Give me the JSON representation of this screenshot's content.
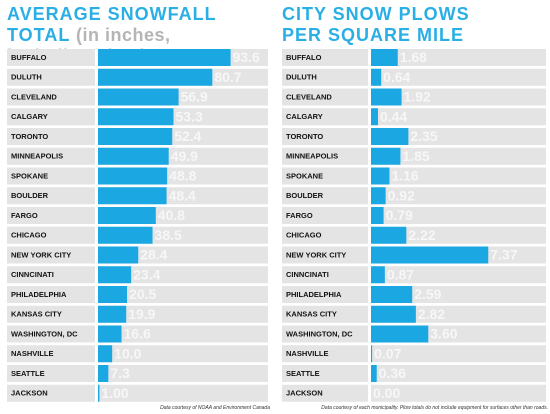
{
  "chart_data": [
    {
      "type": "bar",
      "orientation": "horizontal",
      "title": "AVERAGE SNOWFALL TOTAL",
      "subtitle": "(in inches, including sleet)",
      "categories": [
        "BUFFALO",
        "DULUTH",
        "CLEVELAND",
        "CALGARY",
        "TORONTO",
        "MINNEAPOLIS",
        "SPOKANE",
        "BOULDER",
        "FARGO",
        "CHICAGO",
        "NEW YORK CITY",
        "CINNCINATI",
        "PHILADELPHIA",
        "KANSAS CITY",
        "WASHINGTON, DC",
        "NASHVILLE",
        "SEATTLE",
        "JACKSON"
      ],
      "values": [
        93.6,
        80.7,
        56.9,
        53.3,
        52.4,
        49.9,
        48.8,
        48.4,
        40.8,
        38.5,
        28.4,
        23.4,
        20.5,
        19.9,
        16.6,
        10.0,
        7.3,
        1.0
      ],
      "value_labels": [
        "93.6",
        "80.7",
        "56.9",
        "53.3",
        "52.4",
        "49.9",
        "48.8",
        "48.4",
        "40.8",
        "38.5",
        "28.4",
        "23.4",
        "20.5",
        "19.9",
        "16.6",
        "10.0",
        "7.3",
        "1.00"
      ],
      "color": "#1ba7e2",
      "xlim": [
        0,
        120
      ],
      "note": "Data courtesy of NOAA and Environment Canada"
    },
    {
      "type": "bar",
      "orientation": "horizontal",
      "title": "CITY SNOW PLOWS PER SQUARE MILE",
      "categories": [
        "BUFFALO",
        "DULUTH",
        "CLEVELAND",
        "CALGARY",
        "TORONTO",
        "MINNEAPOLIS",
        "SPOKANE",
        "BOULDER",
        "FARGO",
        "CHICAGO",
        "NEW YORK CITY",
        "CINNCINATI",
        "PHILADELPHIA",
        "KANSAS CITY",
        "WASHINGTON, DC",
        "NASHVILLE",
        "SEATTLE",
        "JACKSON"
      ],
      "values": [
        1.68,
        0.64,
        1.92,
        0.44,
        2.35,
        1.85,
        1.16,
        0.92,
        0.79,
        2.22,
        7.37,
        0.87,
        2.59,
        2.82,
        3.6,
        0.07,
        0.36,
        0
      ],
      "value_labels": [
        "1.68",
        "0.64",
        "1.92",
        "0.44",
        "2.35",
        "1.85",
        "1.16",
        "0.92",
        "0.79",
        "2.22",
        "7.37",
        "0.87",
        "2.59",
        "2.82",
        "3.60",
        "0.07",
        "0.36",
        "0.00"
      ],
      "color": "#1ba7e2",
      "xlim": [
        0,
        11
      ],
      "note": "Data courtesy of each municipality. Plow totals do not include equipment for surfaces other than roads."
    }
  ]
}
